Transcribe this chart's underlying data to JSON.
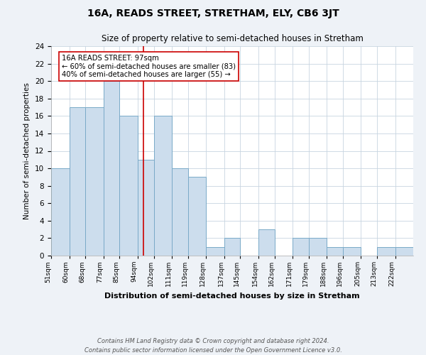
{
  "title": "16A, READS STREET, STRETHAM, ELY, CB6 3JT",
  "subtitle": "Size of property relative to semi-detached houses in Stretham",
  "xlabel": "Distribution of semi-detached houses by size in Stretham",
  "ylabel": "Number of semi-detached properties",
  "bin_labels": [
    "51sqm",
    "60sqm",
    "68sqm",
    "77sqm",
    "85sqm",
    "94sqm",
    "102sqm",
    "111sqm",
    "119sqm",
    "128sqm",
    "137sqm",
    "145sqm",
    "154sqm",
    "162sqm",
    "171sqm",
    "179sqm",
    "188sqm",
    "196sqm",
    "205sqm",
    "213sqm",
    "222sqm"
  ],
  "bar_heights": [
    10,
    17,
    17,
    20,
    16,
    11,
    16,
    10,
    9,
    1,
    2,
    0,
    3,
    0,
    2,
    2,
    1,
    1,
    0,
    1,
    1
  ],
  "bin_edges": [
    51,
    60,
    68,
    77,
    85,
    94,
    102,
    111,
    119,
    128,
    137,
    145,
    154,
    162,
    171,
    179,
    188,
    196,
    205,
    213,
    222,
    231
  ],
  "bar_color": "#ccdded",
  "bar_edge_color": "#7aaac8",
  "property_value": 97,
  "red_line_color": "#cc0000",
  "annotation_box_edge_color": "#cc0000",
  "annotation_title": "16A READS STREET: 97sqm",
  "annotation_line1": "← 60% of semi-detached houses are smaller (83)",
  "annotation_line2": "40% of semi-detached houses are larger (55) →",
  "ylim": [
    0,
    24
  ],
  "yticks": [
    0,
    2,
    4,
    6,
    8,
    10,
    12,
    14,
    16,
    18,
    20,
    22,
    24
  ],
  "footer1": "Contains HM Land Registry data © Crown copyright and database right 2024.",
  "footer2": "Contains public sector information licensed under the Open Government Licence v3.0.",
  "bg_color": "#eef2f7",
  "plot_bg_color": "#ffffff"
}
